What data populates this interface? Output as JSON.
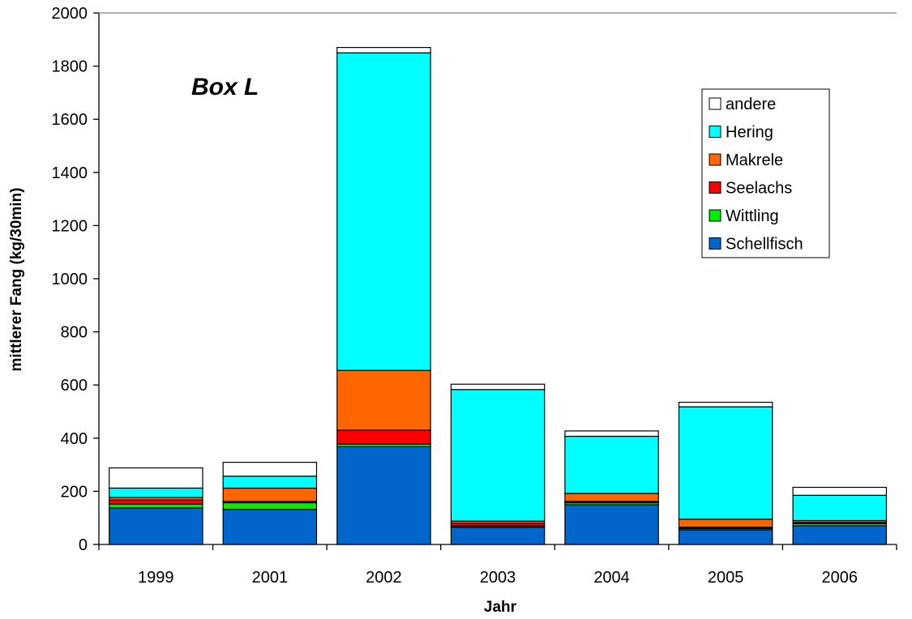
{
  "chart_data": {
    "type": "bar",
    "stacked": true,
    "annotation": "Box L",
    "xlabel": "Jahr",
    "ylabel": "mittlerer Fang (kg/30min)",
    "ylim": [
      0,
      2000
    ],
    "yticks": [
      0,
      200,
      400,
      600,
      800,
      1000,
      1200,
      1400,
      1600,
      1800,
      2000
    ],
    "ytick_labels": [
      "0",
      "200",
      "400",
      "600",
      "800",
      "1000",
      "1200",
      "1400",
      "1600",
      "1800",
      "2000"
    ],
    "grid": false,
    "legend_position": "top-right",
    "categories": [
      "1999",
      "2001",
      "2002",
      "2003",
      "2004",
      "2005",
      "2006"
    ],
    "series": [
      {
        "name": "Schellfisch",
        "color": "#0066CC",
        "values": [
          137,
          132,
          368,
          65,
          149,
          55,
          70
        ]
      },
      {
        "name": "Wittling",
        "color": "#00EE00",
        "values": [
          15,
          25,
          10,
          5,
          8,
          5,
          8
        ]
      },
      {
        "name": "Seelachs",
        "color": "#FF0000",
        "values": [
          15,
          5,
          52,
          10,
          5,
          5,
          5
        ]
      },
      {
        "name": "Makrele",
        "color": "#FF6600",
        "values": [
          10,
          50,
          225,
          8,
          30,
          30,
          7
        ]
      },
      {
        "name": "Hering",
        "color": "#00FFFF",
        "values": [
          35,
          45,
          1195,
          495,
          215,
          423,
          95
        ]
      },
      {
        "name": "andere",
        "color": "#FFFFFF",
        "values": [
          76,
          52,
          20,
          20,
          20,
          17,
          30
        ]
      }
    ]
  }
}
